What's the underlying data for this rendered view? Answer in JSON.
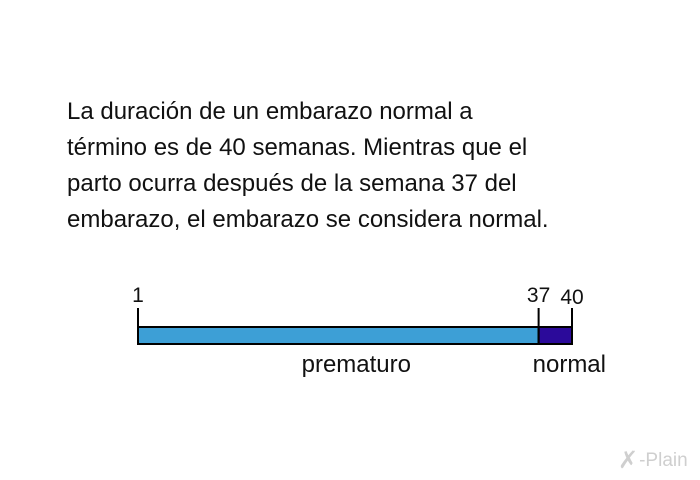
{
  "paragraph": {
    "lines": [
      "La duración de un embarazo normal a",
      "término es de 40 semanas. Mientras que el",
      "parto ocurra después de la semana 37 del",
      "embarazo, el embarazo se considera normal."
    ]
  },
  "timeline": {
    "start_week": 1,
    "end_week": 40,
    "ticks": [
      {
        "week": 1,
        "label": "1"
      },
      {
        "week": 37,
        "label": "37"
      },
      {
        "week": 40,
        "label": "40"
      }
    ],
    "segments": [
      {
        "label": "prematuro",
        "from": 1,
        "to": 37,
        "color": "#3d9fd6"
      },
      {
        "label": "normal",
        "from": 37,
        "to": 40,
        "color": "#2b0a9a"
      }
    ]
  },
  "watermark": {
    "text": "-Plain",
    "icon": "x-plain-logo-icon"
  }
}
